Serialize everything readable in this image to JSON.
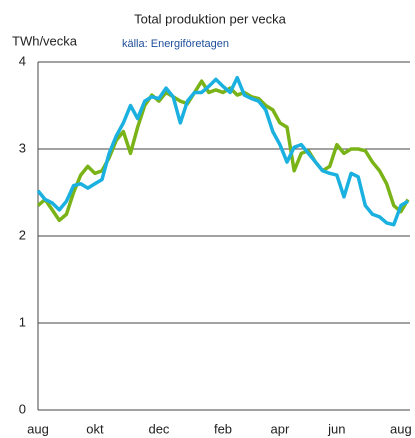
{
  "chart_data": {
    "type": "line",
    "title": "Total produktion per vecka",
    "subtitle": "källa: Energiföretagen",
    "y_label": "TWh/vecka",
    "categories": [
      "aug",
      null,
      null,
      null,
      null,
      null,
      null,
      null,
      "okt",
      null,
      null,
      null,
      null,
      null,
      null,
      null,
      null,
      "dec",
      null,
      null,
      null,
      null,
      null,
      null,
      null,
      null,
      "feb",
      null,
      null,
      null,
      null,
      null,
      null,
      null,
      "apr",
      null,
      null,
      null,
      null,
      null,
      null,
      null,
      "jun",
      null,
      null,
      null,
      null,
      null,
      null,
      null,
      null,
      "aug",
      null
    ],
    "series": [
      {
        "color": "#7ab317",
        "values": [
          2.35,
          2.42,
          2.3,
          2.18,
          2.25,
          2.5,
          2.7,
          2.8,
          2.72,
          2.75,
          2.9,
          3.1,
          3.2,
          2.95,
          3.25,
          3.5,
          3.62,
          3.55,
          3.65,
          3.6,
          3.55,
          3.52,
          3.65,
          3.78,
          3.65,
          3.68,
          3.65,
          3.7,
          3.62,
          3.65,
          3.6,
          3.58,
          3.5,
          3.45,
          3.3,
          3.25,
          2.75,
          2.95,
          2.98,
          2.85,
          2.75,
          2.8,
          3.05,
          2.95,
          3.0,
          3.0,
          2.98,
          2.85,
          2.75,
          2.6,
          2.35,
          2.28,
          2.42
        ]
      },
      {
        "color": "#1ab0e0",
        "values": [
          2.52,
          2.42,
          2.38,
          2.3,
          2.4,
          2.58,
          2.6,
          2.55,
          2.6,
          2.65,
          2.95,
          3.15,
          3.3,
          3.5,
          3.35,
          3.55,
          3.6,
          3.58,
          3.7,
          3.6,
          3.3,
          3.55,
          3.65,
          3.65,
          3.72,
          3.8,
          3.72,
          3.65,
          3.82,
          3.62,
          3.58,
          3.55,
          3.45,
          3.2,
          3.05,
          2.85,
          3.02,
          3.05,
          2.95,
          2.85,
          2.75,
          2.72,
          2.7,
          2.45,
          2.72,
          2.68,
          2.35,
          2.25,
          2.22,
          2.15,
          2.13,
          2.35,
          2.4
        ]
      }
    ],
    "ylim": [
      0,
      4
    ],
    "yticks": [
      0,
      1,
      2,
      3,
      4
    ],
    "grid": true
  }
}
